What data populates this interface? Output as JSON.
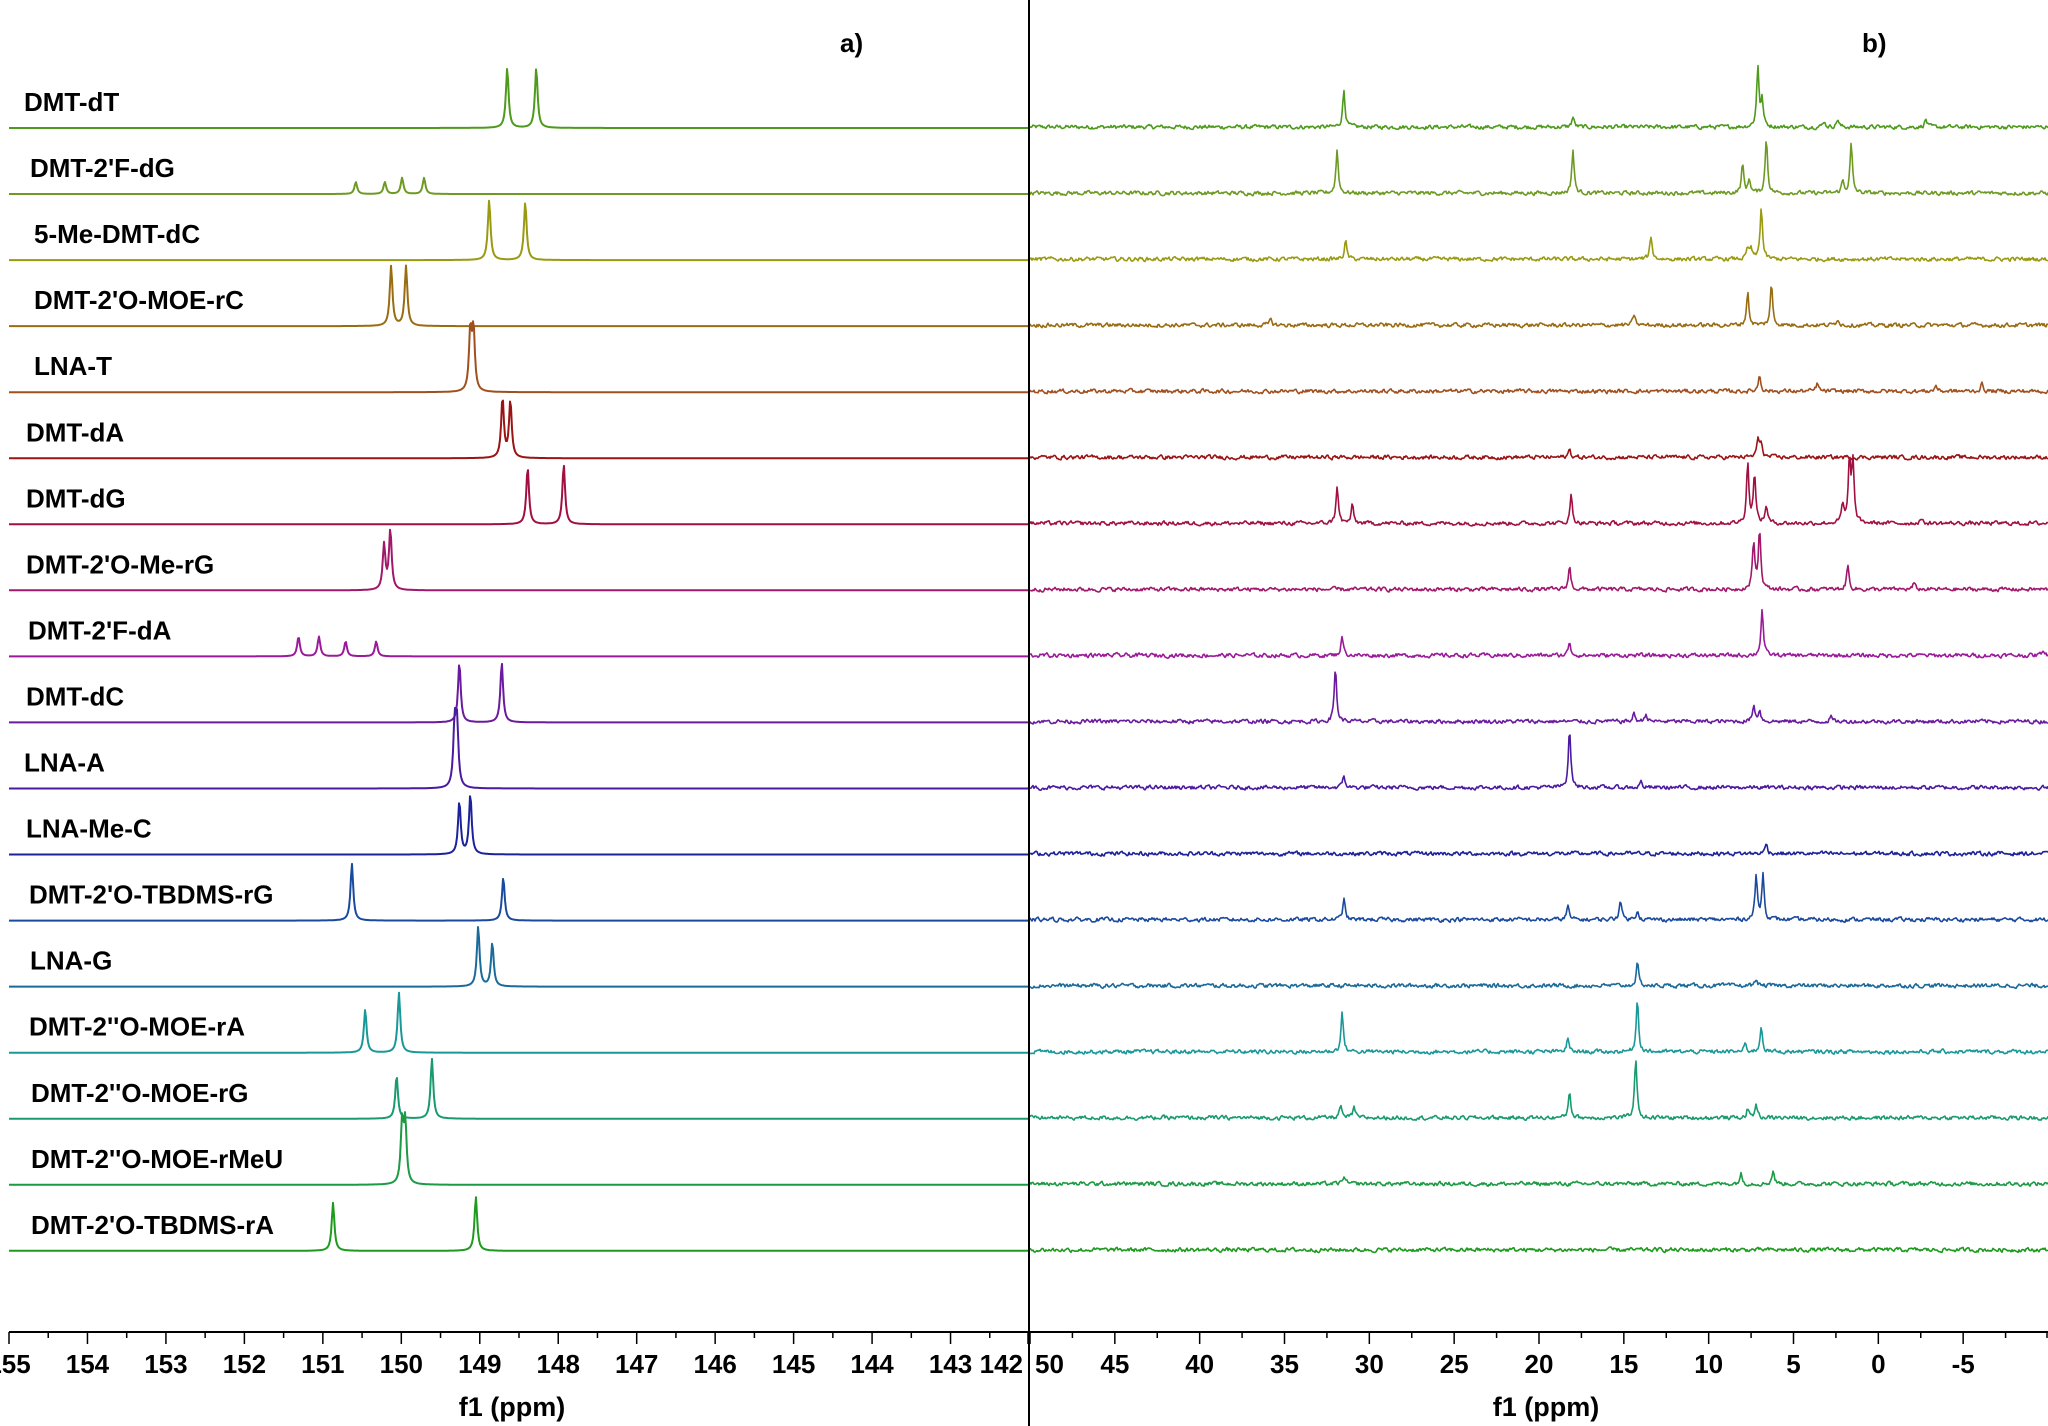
{
  "chart_data": [
    {
      "type": "line",
      "panel_label": "a)",
      "xlabel": "f1 (ppm)",
      "xlim": [
        155,
        142
      ],
      "x_reversed": true,
      "xticks": [
        155,
        154,
        153,
        152,
        151,
        150,
        149,
        148,
        147,
        146,
        145,
        144,
        143,
        142
      ],
      "grid": false,
      "layout": "stacked spectra",
      "series": [
        {
          "name": "DMT-dT",
          "color": "#4e9a1c",
          "peaks": [
            {
              "ppm": 148.65,
              "intensity": 1.0
            },
            {
              "ppm": 148.28,
              "intensity": 1.0
            }
          ]
        },
        {
          "name": "DMT-2'F-dG",
          "color": "#6e9a24",
          "peaks": [
            {
              "ppm": 150.58,
              "intensity": 0.2
            },
            {
              "ppm": 150.21,
              "intensity": 0.2
            },
            {
              "ppm": 149.99,
              "intensity": 0.27
            },
            {
              "ppm": 149.71,
              "intensity": 0.27
            }
          ]
        },
        {
          "name": "5-Me-DMT-dC",
          "color": "#9a9a12",
          "peaks": [
            {
              "ppm": 148.88,
              "intensity": 1.0
            },
            {
              "ppm": 148.42,
              "intensity": 0.97
            }
          ]
        },
        {
          "name": "DMT-2'O-MOE-rC",
          "color": "#9a6c12",
          "peaks": [
            {
              "ppm": 150.13,
              "intensity": 1.0
            },
            {
              "ppm": 149.94,
              "intensity": 1.0
            }
          ]
        },
        {
          "name": "LNA-T",
          "color": "#a0501e",
          "peaks": [
            {
              "ppm": 149.12,
              "intensity": 1.0
            },
            {
              "ppm": 149.08,
              "intensity": 1.0
            }
          ]
        },
        {
          "name": "DMT-dA",
          "color": "#9a1414",
          "peaks": [
            {
              "ppm": 148.71,
              "intensity": 1.0
            },
            {
              "ppm": 148.61,
              "intensity": 0.95
            }
          ]
        },
        {
          "name": "DMT-dG",
          "color": "#a01040",
          "peaks": [
            {
              "ppm": 148.39,
              "intensity": 0.95
            },
            {
              "ppm": 147.93,
              "intensity": 1.0
            }
          ]
        },
        {
          "name": "DMT-2'O-Me-rG",
          "color": "#a0186c",
          "peaks": [
            {
              "ppm": 150.22,
              "intensity": 0.75
            },
            {
              "ppm": 150.14,
              "intensity": 1.0
            }
          ]
        },
        {
          "name": "DMT-2'F-dA",
          "color": "#9a1a9a",
          "peaks": [
            {
              "ppm": 151.31,
              "intensity": 0.33
            },
            {
              "ppm": 151.05,
              "intensity": 0.33
            },
            {
              "ppm": 150.71,
              "intensity": 0.25
            },
            {
              "ppm": 150.32,
              "intensity": 0.25
            }
          ]
        },
        {
          "name": "DMT-dC",
          "color": "#6a1a9e",
          "peaks": [
            {
              "ppm": 149.26,
              "intensity": 1.0
            },
            {
              "ppm": 148.72,
              "intensity": 1.0
            }
          ]
        },
        {
          "name": "LNA-A",
          "color": "#4a1aa0",
          "peaks": [
            {
              "ppm": 149.32,
              "intensity": 1.0
            },
            {
              "ppm": 149.29,
              "intensity": 1.0
            }
          ]
        },
        {
          "name": "LNA-Me-C",
          "color": "#1c229a",
          "peaks": [
            {
              "ppm": 149.26,
              "intensity": 0.88
            },
            {
              "ppm": 149.12,
              "intensity": 1.0
            }
          ]
        },
        {
          "name": "DMT-2'O-TBDMS-rG",
          "color": "#1a4a9e",
          "peaks": [
            {
              "ppm": 150.63,
              "intensity": 0.95
            },
            {
              "ppm": 148.7,
              "intensity": 0.72
            }
          ]
        },
        {
          "name": "LNA-G",
          "color": "#1a6a9a",
          "peaks": [
            {
              "ppm": 149.02,
              "intensity": 1.0
            },
            {
              "ppm": 148.84,
              "intensity": 0.73
            }
          ]
        },
        {
          "name": "DMT-2''O-MOE-rA",
          "color": "#1a9898",
          "peaks": [
            {
              "ppm": 150.46,
              "intensity": 0.72
            },
            {
              "ppm": 150.03,
              "intensity": 1.0
            }
          ]
        },
        {
          "name": "DMT-2''O-MOE-rG",
          "color": "#1a9a70",
          "peaks": [
            {
              "ppm": 150.06,
              "intensity": 0.72
            },
            {
              "ppm": 149.61,
              "intensity": 1.0
            }
          ]
        },
        {
          "name": "DMT-2''O-MOE-rMeU",
          "color": "#1c9a44",
          "peaks": [
            {
              "ppm": 149.99,
              "intensity": 1.0
            },
            {
              "ppm": 149.95,
              "intensity": 1.0
            }
          ]
        },
        {
          "name": "DMT-2'O-TBDMS-rA",
          "color": "#1e9a1e",
          "peaks": [
            {
              "ppm": 150.87,
              "intensity": 0.8
            },
            {
              "ppm": 149.05,
              "intensity": 0.9
            }
          ]
        }
      ]
    },
    {
      "type": "line",
      "panel_label": "b)",
      "xlabel": "f1 (ppm)",
      "xlim": [
        50,
        -10
      ],
      "x_reversed": true,
      "xticks": [
        50,
        45,
        40,
        35,
        30,
        25,
        20,
        15,
        10,
        5,
        0,
        -5
      ],
      "grid": false,
      "layout": "stacked spectra",
      "series": [
        {
          "color": "#4e9a1c",
          "peaks": [
            {
              "ppm": 31.5,
              "intensity": 0.62
            },
            {
              "ppm": 18.0,
              "intensity": 0.17
            },
            {
              "ppm": 7.1,
              "intensity": 1.0
            },
            {
              "ppm": 6.85,
              "intensity": 0.42
            },
            {
              "ppm": 3.2,
              "intensity": 0.1
            },
            {
              "ppm": 2.4,
              "intensity": 0.13
            },
            {
              "ppm": -2.8,
              "intensity": 0.13
            }
          ]
        },
        {
          "color": "#6e9a24",
          "peaks": [
            {
              "ppm": 31.9,
              "intensity": 0.72
            },
            {
              "ppm": 18.0,
              "intensity": 0.72
            },
            {
              "ppm": 8.0,
              "intensity": 0.47
            },
            {
              "ppm": 7.6,
              "intensity": 0.23
            },
            {
              "ppm": 6.6,
              "intensity": 0.92
            },
            {
              "ppm": 2.1,
              "intensity": 0.2
            },
            {
              "ppm": 1.6,
              "intensity": 0.82
            }
          ]
        },
        {
          "color": "#9a9a12",
          "peaks": [
            {
              "ppm": 31.4,
              "intensity": 0.3
            },
            {
              "ppm": 13.4,
              "intensity": 0.38
            },
            {
              "ppm": 7.7,
              "intensity": 0.17
            },
            {
              "ppm": 7.5,
              "intensity": 0.17
            },
            {
              "ppm": 6.9,
              "intensity": 0.87
            }
          ]
        },
        {
          "color": "#9a6c12",
          "peaks": [
            {
              "ppm": 35.8,
              "intensity": 0.1
            },
            {
              "ppm": 14.4,
              "intensity": 0.18
            },
            {
              "ppm": 7.7,
              "intensity": 0.55
            },
            {
              "ppm": 6.3,
              "intensity": 0.67
            },
            {
              "ppm": 2.4,
              "intensity": 0.12
            }
          ]
        },
        {
          "color": "#a0501e",
          "peaks": [
            {
              "ppm": 7.0,
              "intensity": 0.28
            },
            {
              "ppm": 3.6,
              "intensity": 0.13
            },
            {
              "ppm": -3.4,
              "intensity": 0.1
            },
            {
              "ppm": -6.1,
              "intensity": 0.12
            }
          ]
        },
        {
          "color": "#9a1414",
          "peaks": [
            {
              "ppm": 18.2,
              "intensity": 0.13
            },
            {
              "ppm": 7.1,
              "intensity": 0.3
            },
            {
              "ppm": 6.9,
              "intensity": 0.23
            }
          ]
        },
        {
          "color": "#a01040",
          "peaks": [
            {
              "ppm": 31.9,
              "intensity": 0.63
            },
            {
              "ppm": 31.0,
              "intensity": 0.3
            },
            {
              "ppm": 18.1,
              "intensity": 0.47
            },
            {
              "ppm": 7.7,
              "intensity": 1.0
            },
            {
              "ppm": 7.3,
              "intensity": 0.83
            },
            {
              "ppm": 6.6,
              "intensity": 0.3
            },
            {
              "ppm": 2.1,
              "intensity": 0.3
            },
            {
              "ppm": 1.7,
              "intensity": 1.0
            },
            {
              "ppm": 1.5,
              "intensity": 1.0
            },
            {
              "ppm": -2.5,
              "intensity": 0.08
            }
          ]
        },
        {
          "color": "#a0186c",
          "peaks": [
            {
              "ppm": 18.2,
              "intensity": 0.38
            },
            {
              "ppm": 7.35,
              "intensity": 0.78
            },
            {
              "ppm": 7.0,
              "intensity": 1.0
            },
            {
              "ppm": 1.8,
              "intensity": 0.4
            },
            {
              "ppm": -2.1,
              "intensity": 0.1
            }
          ]
        },
        {
          "color": "#9a1a9a",
          "peaks": [
            {
              "ppm": 31.6,
              "intensity": 0.33
            },
            {
              "ppm": 18.2,
              "intensity": 0.23
            },
            {
              "ppm": 6.85,
              "intensity": 0.77
            },
            {
              "ppm": -9.7,
              "intensity": 0.1
            }
          ]
        },
        {
          "color": "#6a1a9e",
          "peaks": [
            {
              "ppm": 32.0,
              "intensity": 0.9
            },
            {
              "ppm": 14.4,
              "intensity": 0.13
            },
            {
              "ppm": 13.7,
              "intensity": 0.13
            },
            {
              "ppm": 7.35,
              "intensity": 0.28
            },
            {
              "ppm": 7.0,
              "intensity": 0.2
            },
            {
              "ppm": 2.8,
              "intensity": 0.08
            }
          ]
        },
        {
          "color": "#4a1aa0",
          "peaks": [
            {
              "ppm": 31.5,
              "intensity": 0.2
            },
            {
              "ppm": 18.2,
              "intensity": 1.0
            },
            {
              "ppm": 14.0,
              "intensity": 0.1
            }
          ]
        },
        {
          "color": "#1c229a",
          "peaks": [
            {
              "ppm": 6.6,
              "intensity": 0.17
            }
          ]
        },
        {
          "color": "#1a4a9e",
          "peaks": [
            {
              "ppm": 31.5,
              "intensity": 0.35
            },
            {
              "ppm": 18.3,
              "intensity": 0.23
            },
            {
              "ppm": 15.2,
              "intensity": 0.35
            },
            {
              "ppm": 14.2,
              "intensity": 0.17
            },
            {
              "ppm": 7.2,
              "intensity": 0.72
            },
            {
              "ppm": 6.8,
              "intensity": 0.75
            }
          ]
        },
        {
          "color": "#1a6a9a",
          "peaks": [
            {
              "ppm": 14.2,
              "intensity": 0.37
            },
            {
              "ppm": 7.2,
              "intensity": 0.12
            }
          ]
        },
        {
          "color": "#1a9898",
          "peaks": [
            {
              "ppm": 31.6,
              "intensity": 0.65
            },
            {
              "ppm": 18.3,
              "intensity": 0.22
            },
            {
              "ppm": 14.2,
              "intensity": 0.87
            },
            {
              "ppm": 7.85,
              "intensity": 0.13
            },
            {
              "ppm": 6.9,
              "intensity": 0.43
            }
          ]
        },
        {
          "color": "#1a9a70",
          "peaks": [
            {
              "ppm": 31.7,
              "intensity": 0.2
            },
            {
              "ppm": 30.9,
              "intensity": 0.17
            },
            {
              "ppm": 18.2,
              "intensity": 0.45
            },
            {
              "ppm": 14.3,
              "intensity": 1.0
            },
            {
              "ppm": 7.7,
              "intensity": 0.15
            },
            {
              "ppm": 7.2,
              "intensity": 0.23
            }
          ]
        },
        {
          "color": "#1c9a44",
          "peaks": [
            {
              "ppm": 31.5,
              "intensity": 0.13
            },
            {
              "ppm": 8.1,
              "intensity": 0.17
            },
            {
              "ppm": 6.2,
              "intensity": 0.22
            }
          ]
        },
        {
          "color": "#1e9a1e",
          "peaks": []
        }
      ]
    }
  ]
}
